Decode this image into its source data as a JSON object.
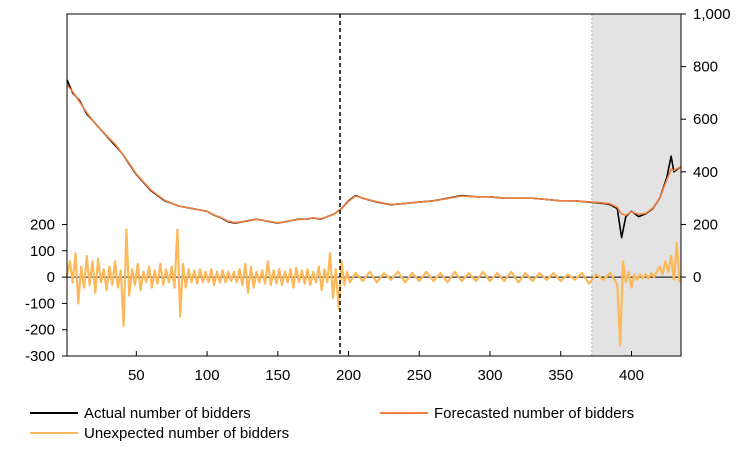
{
  "chart_data": {
    "type": "line",
    "title": "",
    "xlabel": "",
    "ylabel": "",
    "xlim": [
      1,
      435
    ],
    "x_ticks": [
      50,
      100,
      150,
      200,
      250,
      300,
      350,
      400
    ],
    "y_left_range": [
      -300,
      1000
    ],
    "y_left_ticks": [
      200,
      100,
      0,
      -100,
      -200,
      -300
    ],
    "y_left_tick_labels": [
      "200",
      "100",
      "0",
      "-100",
      "-200",
      "-300"
    ],
    "y_right_range": [
      -300,
      1000
    ],
    "y_right_ticks": [
      1000,
      800,
      600,
      400,
      200,
      0
    ],
    "y_right_tick_labels": [
      "1,000",
      "800",
      "600",
      "400",
      "200",
      "0"
    ],
    "zero_line": 0,
    "vertical_marker_x": 194,
    "shaded_region": [
      372,
      435
    ],
    "legend_placement": "bottom",
    "colors": {
      "actual": "#000000",
      "forecast": "#ef7f3f",
      "unexpected": "#fbb95b",
      "shade": "#e3e3e3",
      "shade_edge": "#b0b0b0"
    },
    "series": [
      {
        "name": "Actual number of bidders",
        "axis": "right",
        "color": "#000000",
        "points": [
          [
            1,
            750
          ],
          [
            5,
            700
          ],
          [
            10,
            670
          ],
          [
            15,
            620
          ],
          [
            20,
            590
          ],
          [
            25,
            560
          ],
          [
            30,
            530
          ],
          [
            35,
            500
          ],
          [
            40,
            470
          ],
          [
            45,
            430
          ],
          [
            50,
            390
          ],
          [
            55,
            360
          ],
          [
            60,
            330
          ],
          [
            65,
            310
          ],
          [
            70,
            290
          ],
          [
            75,
            280
          ],
          [
            80,
            270
          ],
          [
            85,
            265
          ],
          [
            90,
            260
          ],
          [
            95,
            255
          ],
          [
            100,
            250
          ],
          [
            105,
            235
          ],
          [
            110,
            225
          ],
          [
            115,
            210
          ],
          [
            120,
            205
          ],
          [
            125,
            210
          ],
          [
            130,
            215
          ],
          [
            135,
            220
          ],
          [
            140,
            215
          ],
          [
            145,
            210
          ],
          [
            150,
            205
          ],
          [
            155,
            210
          ],
          [
            160,
            215
          ],
          [
            165,
            220
          ],
          [
            170,
            220
          ],
          [
            175,
            225
          ],
          [
            180,
            220
          ],
          [
            185,
            230
          ],
          [
            190,
            240
          ],
          [
            195,
            260
          ],
          [
            200,
            290
          ],
          [
            205,
            310
          ],
          [
            210,
            300
          ],
          [
            220,
            285
          ],
          [
            230,
            275
          ],
          [
            240,
            280
          ],
          [
            250,
            285
          ],
          [
            260,
            290
          ],
          [
            270,
            300
          ],
          [
            280,
            310
          ],
          [
            290,
            305
          ],
          [
            300,
            305
          ],
          [
            310,
            300
          ],
          [
            320,
            300
          ],
          [
            330,
            300
          ],
          [
            340,
            295
          ],
          [
            350,
            290
          ],
          [
            360,
            290
          ],
          [
            370,
            285
          ],
          [
            380,
            280
          ],
          [
            385,
            275
          ],
          [
            390,
            260
          ],
          [
            393,
            150
          ],
          [
            396,
            230
          ],
          [
            400,
            250
          ],
          [
            405,
            230
          ],
          [
            410,
            240
          ],
          [
            415,
            260
          ],
          [
            420,
            300
          ],
          [
            425,
            380
          ],
          [
            428,
            460
          ],
          [
            430,
            400
          ],
          [
            435,
            420
          ]
        ]
      },
      {
        "name": "Forecasted number of bidders",
        "axis": "right",
        "color": "#ef7f3f",
        "points": [
          [
            1,
            730
          ],
          [
            5,
            705
          ],
          [
            10,
            665
          ],
          [
            15,
            625
          ],
          [
            20,
            590
          ],
          [
            25,
            560
          ],
          [
            30,
            532
          ],
          [
            35,
            505
          ],
          [
            40,
            470
          ],
          [
            45,
            432
          ],
          [
            50,
            392
          ],
          [
            55,
            362
          ],
          [
            60,
            332
          ],
          [
            65,
            312
          ],
          [
            70,
            292
          ],
          [
            75,
            281
          ],
          [
            80,
            270
          ],
          [
            85,
            265
          ],
          [
            90,
            260
          ],
          [
            95,
            255
          ],
          [
            100,
            250
          ],
          [
            105,
            236
          ],
          [
            110,
            226
          ],
          [
            115,
            212
          ],
          [
            120,
            207
          ],
          [
            125,
            210
          ],
          [
            130,
            214
          ],
          [
            135,
            220
          ],
          [
            140,
            215
          ],
          [
            145,
            211
          ],
          [
            150,
            206
          ],
          [
            155,
            210
          ],
          [
            160,
            215
          ],
          [
            165,
            219
          ],
          [
            170,
            220
          ],
          [
            175,
            225
          ],
          [
            180,
            221
          ],
          [
            185,
            230
          ],
          [
            190,
            240
          ],
          [
            195,
            260
          ],
          [
            200,
            288
          ],
          [
            205,
            308
          ],
          [
            210,
            300
          ],
          [
            220,
            286
          ],
          [
            230,
            276
          ],
          [
            240,
            280
          ],
          [
            250,
            285
          ],
          [
            260,
            290
          ],
          [
            270,
            299
          ],
          [
            280,
            308
          ],
          [
            290,
            305
          ],
          [
            300,
            305
          ],
          [
            310,
            300
          ],
          [
            320,
            300
          ],
          [
            330,
            300
          ],
          [
            340,
            295
          ],
          [
            350,
            290
          ],
          [
            360,
            290
          ],
          [
            370,
            286
          ],
          [
            380,
            282
          ],
          [
            385,
            278
          ],
          [
            390,
            265
          ],
          [
            393,
            240
          ],
          [
            396,
            235
          ],
          [
            400,
            248
          ],
          [
            405,
            238
          ],
          [
            410,
            242
          ],
          [
            415,
            262
          ],
          [
            420,
            300
          ],
          [
            425,
            370
          ],
          [
            428,
            410
          ],
          [
            430,
            405
          ],
          [
            435,
            420
          ]
        ]
      },
      {
        "name": "Unexpected number of bidders",
        "axis": "left",
        "color": "#fbb95b",
        "points": [
          [
            1,
            5
          ],
          [
            3,
            60
          ],
          [
            5,
            -20
          ],
          [
            7,
            90
          ],
          [
            9,
            -100
          ],
          [
            11,
            40
          ],
          [
            13,
            -40
          ],
          [
            15,
            80
          ],
          [
            17,
            -30
          ],
          [
            19,
            60
          ],
          [
            21,
            -60
          ],
          [
            23,
            70
          ],
          [
            25,
            -20
          ],
          [
            27,
            30
          ],
          [
            29,
            -50
          ],
          [
            31,
            40
          ],
          [
            33,
            -30
          ],
          [
            35,
            60
          ],
          [
            37,
            -40
          ],
          [
            39,
            25
          ],
          [
            41,
            -185
          ],
          [
            43,
            180
          ],
          [
            45,
            -70
          ],
          [
            47,
            30
          ],
          [
            49,
            -30
          ],
          [
            51,
            50
          ],
          [
            53,
            -50
          ],
          [
            55,
            20
          ],
          [
            57,
            -20
          ],
          [
            59,
            40
          ],
          [
            61,
            -40
          ],
          [
            63,
            25
          ],
          [
            65,
            -25
          ],
          [
            67,
            50
          ],
          [
            69,
            -30
          ],
          [
            71,
            30
          ],
          [
            73,
            -20
          ],
          [
            75,
            40
          ],
          [
            77,
            -40
          ],
          [
            79,
            180
          ],
          [
            81,
            -150
          ],
          [
            83,
            50
          ],
          [
            85,
            -40
          ],
          [
            87,
            30
          ],
          [
            89,
            -20
          ],
          [
            91,
            25
          ],
          [
            93,
            -25
          ],
          [
            95,
            30
          ],
          [
            97,
            -20
          ],
          [
            99,
            20
          ],
          [
            101,
            -20
          ],
          [
            103,
            30
          ],
          [
            105,
            -30
          ],
          [
            107,
            20
          ],
          [
            109,
            -20
          ],
          [
            111,
            25
          ],
          [
            113,
            -20
          ],
          [
            115,
            20
          ],
          [
            117,
            -15
          ],
          [
            119,
            20
          ],
          [
            121,
            -20
          ],
          [
            123,
            30
          ],
          [
            125,
            -30
          ],
          [
            127,
            50
          ],
          [
            129,
            -60
          ],
          [
            131,
            40
          ],
          [
            133,
            -40
          ],
          [
            135,
            20
          ],
          [
            137,
            -20
          ],
          [
            139,
            25
          ],
          [
            141,
            -25
          ],
          [
            143,
            60
          ],
          [
            145,
            -30
          ],
          [
            147,
            25
          ],
          [
            149,
            -25
          ],
          [
            151,
            30
          ],
          [
            153,
            -30
          ],
          [
            155,
            20
          ],
          [
            157,
            -20
          ],
          [
            159,
            30
          ],
          [
            161,
            -40
          ],
          [
            163,
            35
          ],
          [
            165,
            -20
          ],
          [
            167,
            25
          ],
          [
            169,
            -25
          ],
          [
            171,
            30
          ],
          [
            173,
            -30
          ],
          [
            175,
            20
          ],
          [
            177,
            -20
          ],
          [
            179,
            40
          ],
          [
            181,
            -50
          ],
          [
            183,
            30
          ],
          [
            185,
            -20
          ],
          [
            187,
            90
          ],
          [
            189,
            -80
          ],
          [
            191,
            30
          ],
          [
            193,
            -120
          ],
          [
            195,
            60
          ],
          [
            197,
            -30
          ],
          [
            199,
            20
          ],
          [
            201,
            -20
          ],
          [
            205,
            15
          ],
          [
            210,
            -15
          ],
          [
            215,
            20
          ],
          [
            220,
            -20
          ],
          [
            225,
            15
          ],
          [
            230,
            -10
          ],
          [
            235,
            20
          ],
          [
            240,
            -20
          ],
          [
            245,
            15
          ],
          [
            250,
            -15
          ],
          [
            255,
            20
          ],
          [
            260,
            -15
          ],
          [
            265,
            15
          ],
          [
            270,
            -20
          ],
          [
            275,
            20
          ],
          [
            280,
            -15
          ],
          [
            285,
            15
          ],
          [
            290,
            -15
          ],
          [
            295,
            20
          ],
          [
            300,
            -15
          ],
          [
            305,
            15
          ],
          [
            310,
            -15
          ],
          [
            315,
            20
          ],
          [
            320,
            -20
          ],
          [
            325,
            15
          ],
          [
            330,
            -15
          ],
          [
            335,
            15
          ],
          [
            340,
            -10
          ],
          [
            345,
            15
          ],
          [
            350,
            -15
          ],
          [
            355,
            10
          ],
          [
            360,
            -10
          ],
          [
            365,
            15
          ],
          [
            370,
            -25
          ],
          [
            375,
            10
          ],
          [
            380,
            -10
          ],
          [
            385,
            15
          ],
          [
            388,
            -10
          ],
          [
            390,
            -30
          ],
          [
            392,
            -260
          ],
          [
            394,
            60
          ],
          [
            396,
            -20
          ],
          [
            398,
            20
          ],
          [
            400,
            -40
          ],
          [
            402,
            10
          ],
          [
            404,
            -10
          ],
          [
            406,
            10
          ],
          [
            408,
            -5
          ],
          [
            410,
            10
          ],
          [
            412,
            -5
          ],
          [
            414,
            15
          ],
          [
            416,
            0
          ],
          [
            418,
            20
          ],
          [
            420,
            40
          ],
          [
            422,
            10
          ],
          [
            424,
            60
          ],
          [
            426,
            20
          ],
          [
            428,
            80
          ],
          [
            430,
            -10
          ],
          [
            432,
            130
          ],
          [
            434,
            -20
          ]
        ]
      }
    ]
  }
}
